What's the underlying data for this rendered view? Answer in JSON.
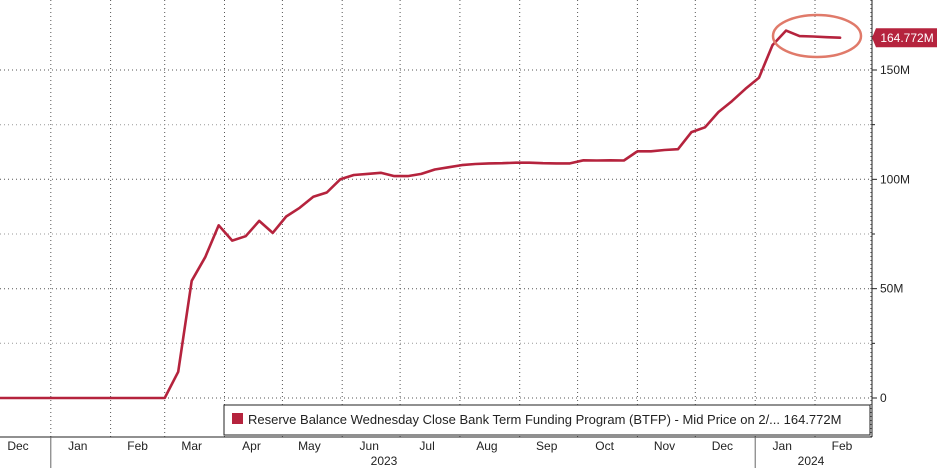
{
  "chart_data": {
    "type": "line",
    "title": "",
    "xlabel": "",
    "ylabel": "",
    "ylim": [
      0,
      180000000
    ],
    "y_ticks": [
      {
        "value": 0,
        "label": "0"
      },
      {
        "value": 50000000,
        "label": "50M"
      },
      {
        "value": 100000000,
        "label": "100M"
      },
      {
        "value": 150000000,
        "label": "150M"
      }
    ],
    "x_ticks": [
      {
        "date": "2022-12-15",
        "label": "Dec"
      },
      {
        "date": "2023-01-15",
        "label": "Jan"
      },
      {
        "date": "2023-02-15",
        "label": "Feb"
      },
      {
        "date": "2023-03-15",
        "label": "Mar"
      },
      {
        "date": "2023-04-15",
        "label": "Apr"
      },
      {
        "date": "2023-05-15",
        "label": "May"
      },
      {
        "date": "2023-06-15",
        "label": "Jun"
      },
      {
        "date": "2023-07-15",
        "label": "Jul"
      },
      {
        "date": "2023-08-15",
        "label": "Aug"
      },
      {
        "date": "2023-09-15",
        "label": "Sep"
      },
      {
        "date": "2023-10-15",
        "label": "Oct"
      },
      {
        "date": "2023-11-15",
        "label": "Nov"
      },
      {
        "date": "2023-12-15",
        "label": "Dec"
      },
      {
        "date": "2024-01-15",
        "label": "Jan"
      },
      {
        "date": "2024-02-15",
        "label": "Feb"
      }
    ],
    "year_labels": [
      {
        "date": "2023-07-01",
        "label": "2023"
      },
      {
        "date": "2024-02-01",
        "label": "2024"
      }
    ],
    "grid": true,
    "legend_position": "bottom-right",
    "last_value_label": "164.772M",
    "highlight": "circle around peak",
    "series": [
      {
        "name": "Reserve Balance Wednesday Close Bank Term Funding Program (BTFP) - Mid Price on 2/... 164.772M",
        "color": "#b5233d",
        "x": [
          "2022-12-01",
          "2022-12-15",
          "2023-01-01",
          "2023-01-15",
          "2023-02-01",
          "2023-02-15",
          "2023-03-01",
          "2023-03-08",
          "2023-03-15",
          "2023-03-22",
          "2023-03-29",
          "2023-04-05",
          "2023-04-12",
          "2023-04-19",
          "2023-04-26",
          "2023-05-03",
          "2023-05-10",
          "2023-05-17",
          "2023-05-24",
          "2023-05-31",
          "2023-06-07",
          "2023-06-14",
          "2023-06-21",
          "2023-06-28",
          "2023-07-05",
          "2023-07-12",
          "2023-07-19",
          "2023-07-26",
          "2023-08-02",
          "2023-08-09",
          "2023-08-16",
          "2023-08-23",
          "2023-08-30",
          "2023-09-06",
          "2023-09-13",
          "2023-09-20",
          "2023-09-27",
          "2023-10-04",
          "2023-10-11",
          "2023-10-18",
          "2023-10-25",
          "2023-11-01",
          "2023-11-08",
          "2023-11-15",
          "2023-11-22",
          "2023-11-29",
          "2023-12-06",
          "2023-12-13",
          "2023-12-20",
          "2023-12-27",
          "2024-01-03",
          "2024-01-10",
          "2024-01-17",
          "2024-01-24",
          "2024-01-31",
          "2024-02-07",
          "2024-02-14"
        ],
        "values": [
          0,
          0,
          0,
          0,
          0,
          0,
          0,
          12000000,
          53600000,
          64400000,
          79000000,
          72000000,
          74000000,
          81000000,
          75500000,
          83000000,
          87000000,
          92000000,
          94000000,
          100000000,
          102000000,
          102500000,
          103000000,
          101500000,
          101500000,
          102500000,
          104500000,
          105500000,
          106500000,
          107000000,
          107300000,
          107400000,
          107600000,
          107600000,
          107400000,
          107300000,
          107300000,
          108700000,
          108600000,
          108700000,
          108600000,
          112800000,
          112800000,
          113400000,
          113800000,
          121600000,
          123800000,
          130800000,
          135800000,
          141400000,
          146500000,
          161400000,
          168000000,
          165500000,
          165300000,
          165000000,
          164772000
        ]
      }
    ]
  }
}
